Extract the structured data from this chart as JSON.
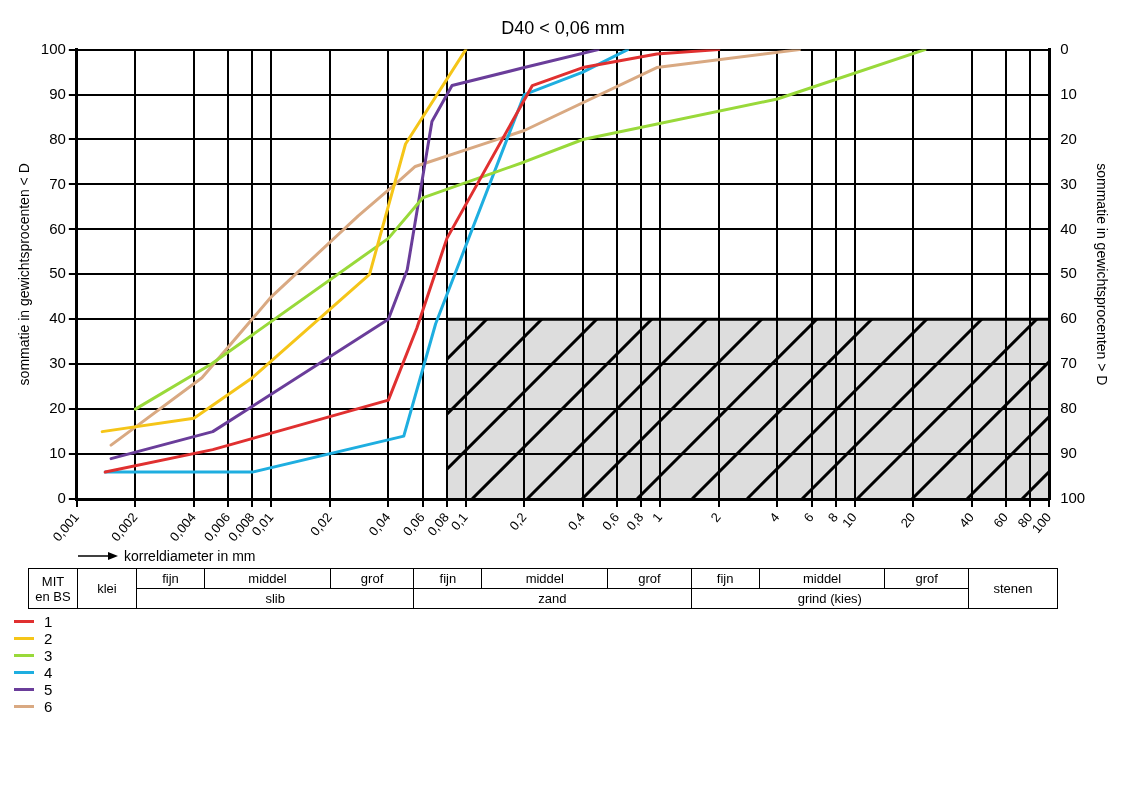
{
  "chart_data": {
    "type": "line",
    "title": "D40 < 0,06 mm",
    "xlabel": "korreldiameter in mm",
    "ylabel": "sommatie in gewichtsprocenten < D",
    "y2label": "sommatie in gewichtsprocenten > D",
    "log": "x",
    "xlim": [
      0.001,
      100
    ],
    "xticks": [
      {
        "value": 0.001,
        "label": "0,001"
      },
      {
        "value": 0.002,
        "label": "0,002"
      },
      {
        "value": 0.004,
        "label": "0,004"
      },
      {
        "value": 0.006,
        "label": "0,006"
      },
      {
        "value": 0.008,
        "label": "0,008"
      },
      {
        "value": 0.01,
        "label": "0,01"
      },
      {
        "value": 0.02,
        "label": "0,02"
      },
      {
        "value": 0.04,
        "label": "0,04"
      },
      {
        "value": 0.06,
        "label": "0,06"
      },
      {
        "value": 0.08,
        "label": "0,08"
      },
      {
        "value": 0.1,
        "label": "0,1"
      },
      {
        "value": 0.2,
        "label": "0,2"
      },
      {
        "value": 0.4,
        "label": "0,4"
      },
      {
        "value": 0.6,
        "label": "0,6"
      },
      {
        "value": 0.8,
        "label": "0,8"
      },
      1,
      2,
      4,
      6,
      8,
      10,
      20,
      40,
      60,
      80,
      100
    ],
    "ylim": [
      0,
      100
    ],
    "yticks": [
      0,
      10,
      20,
      30,
      40,
      50,
      60,
      70,
      80,
      90,
      100
    ],
    "y2lim": [
      100,
      0
    ],
    "y2ticks": [
      0,
      10,
      20,
      30,
      40,
      50,
      60,
      70,
      80,
      90,
      100
    ],
    "grid": true,
    "legend": "bottom left",
    "marker": "none",
    "line_style": "solid",
    "series": [
      {
        "type": "area",
        "color": "#000000",
        "x": [
          0.08,
          100
        ],
        "values": [
          40,
          40
        ]
      },
      {
        "name": "1",
        "color": "#e03030",
        "x": [
          0.0014,
          0.005,
          0.04,
          0.056,
          0.08,
          0.22,
          0.4,
          0.96,
          2
        ],
        "values": [
          6,
          11,
          22,
          38,
          58,
          92,
          96,
          99,
          100
        ]
      },
      {
        "name": "2",
        "color": "#f5c518",
        "x": [
          0.00135,
          0.004,
          0.008,
          0.032,
          0.049,
          0.1
        ],
        "values": [
          15,
          18,
          27,
          50,
          79,
          100
        ]
      },
      {
        "name": "3",
        "color": "#99d93a",
        "x": [
          0.002,
          0.0049,
          0.04,
          0.06,
          0.2,
          0.4,
          4,
          23
        ],
        "values": [
          20,
          30,
          58,
          67,
          75,
          80,
          89,
          100
        ]
      },
      {
        "name": "4",
        "color": "#1eaee0",
        "x": [
          0.0014,
          0.008,
          0.048,
          0.07,
          0.2,
          0.4,
          0.68
        ],
        "values": [
          6,
          6,
          14,
          39,
          90,
          95,
          100
        ]
      },
      {
        "name": "5",
        "color": "#6a3d9a",
        "x": [
          0.0015,
          0.005,
          0.04,
          0.05,
          0.067,
          0.085,
          0.2,
          0.48
        ],
        "values": [
          9,
          15,
          40,
          51,
          84,
          92,
          96,
          100
        ]
      },
      {
        "name": "6",
        "color": "#d9a982",
        "x": [
          0.0015,
          0.0044,
          0.01,
          0.028,
          0.046,
          0.055,
          0.2,
          0.96,
          5.2
        ],
        "values": [
          12,
          27,
          45,
          63,
          71,
          74,
          82,
          96,
          100
        ]
      }
    ],
    "annotations": [
      "MIT en BS",
      "klei",
      "fijn",
      "middel",
      "grof",
      "slib",
      "fijn",
      "middel",
      "grof",
      "zand",
      "fijn",
      "middel",
      "grof",
      "grind (kies)",
      "stenen"
    ]
  }
}
